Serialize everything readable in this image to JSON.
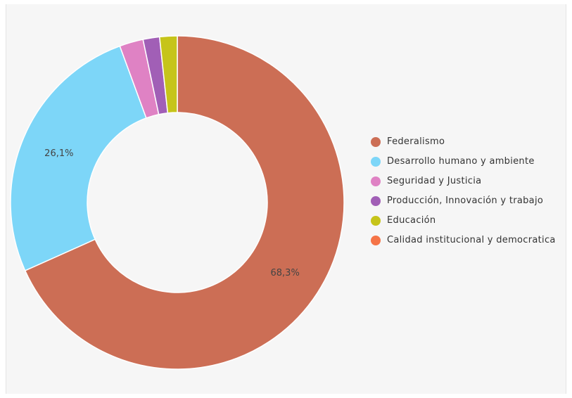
{
  "chart_data": {
    "type": "pie",
    "title": "",
    "categories": [
      "Federalismo",
      "Desarrollo humano y ambiente",
      "Seguridad y Justicia",
      "Producción, Innovación y trabajo",
      "Educación",
      "Calidad institucional y democratica"
    ],
    "values": [
      68.3,
      26.1,
      2.3,
      1.6,
      1.7,
      0.0
    ],
    "value_labels": [
      "68,3%",
      "26,1%",
      "",
      "",
      "",
      ""
    ],
    "colors": [
      "#cc6e55",
      "#7dd6f8",
      "#df82c4",
      "#a15fb6",
      "#c6c41a",
      "#f57447"
    ],
    "legend_position": "right",
    "grid": false
  }
}
